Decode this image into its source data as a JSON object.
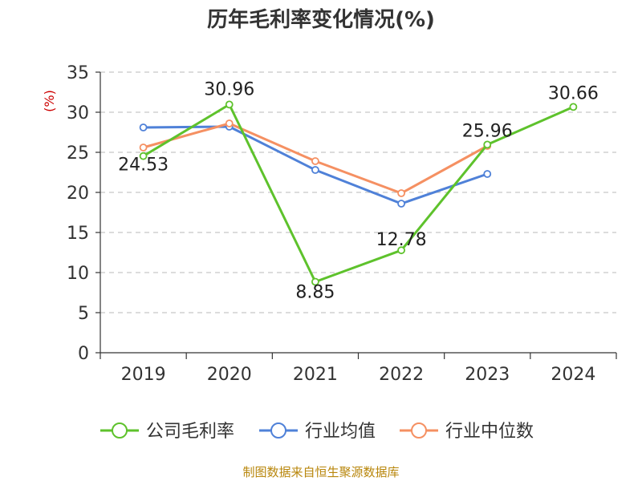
{
  "chart_data": {
    "type": "line",
    "title": "历年毛利率变化情况(%)",
    "ylabel": "(%)",
    "categories": [
      "2019",
      "2020",
      "2021",
      "2022",
      "2023",
      "2024"
    ],
    "ylim": [
      0,
      35
    ],
    "yticks": [
      "0",
      "5",
      "10",
      "15",
      "20",
      "25",
      "30",
      "35"
    ],
    "grid": true,
    "legend_position": "bottom",
    "series": [
      {
        "name": "公司毛利率",
        "color": "#5ec22c",
        "values": [
          24.53,
          30.96,
          8.85,
          12.78,
          25.96,
          30.66
        ],
        "labels": [
          "24.53",
          "30.96",
          "8.85",
          "12.78",
          "25.96",
          "30.66"
        ]
      },
      {
        "name": "行业均值",
        "color": "#4f81d8",
        "values": [
          28.1,
          28.2,
          22.8,
          18.6,
          22.3,
          null
        ]
      },
      {
        "name": "行业中位数",
        "color": "#f59062",
        "values": [
          25.6,
          28.6,
          23.9,
          19.9,
          25.8,
          null
        ]
      }
    ],
    "source": "制图数据来自恒生聚源数据库"
  }
}
